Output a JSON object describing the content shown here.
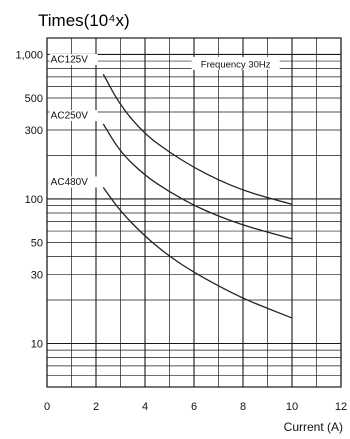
{
  "chart_data": {
    "type": "line",
    "title": "Times(10⁴x)",
    "xlabel": "Current (A)",
    "ylabel": "",
    "xlim": [
      0,
      12
    ],
    "ylim": [
      5,
      1300
    ],
    "yscale": "log",
    "grid": true,
    "x_ticks": [
      "0",
      "2",
      "4",
      "6",
      "8",
      "10",
      "12"
    ],
    "y_ticks": [
      {
        "value": 1000,
        "label": "1,000"
      },
      {
        "value": 500,
        "label": "500"
      },
      {
        "value": 300,
        "label": "300"
      },
      {
        "value": 100,
        "label": "100"
      },
      {
        "value": 50,
        "label": "50"
      },
      {
        "value": 30,
        "label": "30"
      },
      {
        "value": 10,
        "label": "10"
      }
    ],
    "annotation": "Frequency 30Hz",
    "series": [
      {
        "name": "AC125V",
        "x": [
          2.3,
          3,
          4,
          5,
          6,
          7,
          8,
          9,
          10
        ],
        "y": [
          730,
          440,
          280,
          210,
          165,
          135,
          115,
          102,
          92
        ]
      },
      {
        "name": "AC250V",
        "x": [
          2.3,
          3,
          4,
          5,
          6,
          7,
          8,
          9,
          10
        ],
        "y": [
          330,
          210,
          145,
          112,
          90,
          76,
          66,
          59,
          53
        ]
      },
      {
        "name": "AC480V",
        "x": [
          2.3,
          3,
          4,
          5,
          6,
          7,
          8,
          9,
          10
        ],
        "y": [
          120,
          82,
          55,
          40,
          31,
          25,
          20.5,
          17.5,
          15
        ]
      }
    ],
    "colors": {
      "line": "#222222",
      "grid": "#1a1a1a",
      "background": "#ffffff"
    }
  }
}
